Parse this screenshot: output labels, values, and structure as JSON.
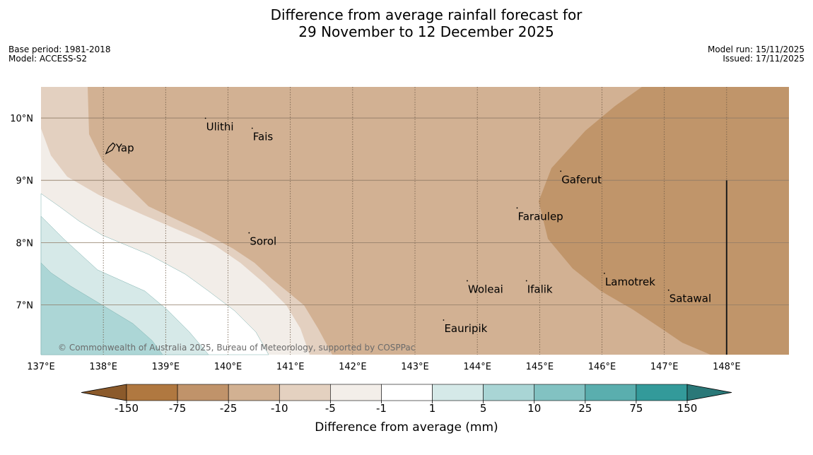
{
  "title": {
    "line1": "Difference from average rainfall forecast for",
    "line2": "29 November to 12 December 2025"
  },
  "meta_left": {
    "base_period": "Base period: 1981-2018",
    "model": "Model: ACCESS-S2"
  },
  "meta_right": {
    "model_run": "Model run: 15/11/2025",
    "issued": "Issued: 17/11/2025"
  },
  "map": {
    "lon_range": [
      137,
      149
    ],
    "lat_range": [
      6.2,
      10.5
    ],
    "lon_ticks": [
      "137°E",
      "138°E",
      "139°E",
      "140°E",
      "141°E",
      "142°E",
      "143°E",
      "144°E",
      "145°E",
      "146°E",
      "147°E",
      "148°E"
    ],
    "lat_ticks": [
      "10°N",
      "9°N",
      "8°N",
      "7°N"
    ],
    "copyright": "© Commonwealth of Australia 2025, Bureau of Meteorology, supported by COSPPac",
    "places": [
      {
        "name": "Yap",
        "lon": 138.2,
        "lat": 9.52
      },
      {
        "name": "Ulithi",
        "lon": 139.65,
        "lat": 9.86
      },
      {
        "name": "Fais",
        "lon": 140.4,
        "lat": 9.7
      },
      {
        "name": "Gaferut",
        "lon": 145.35,
        "lat": 9.01
      },
      {
        "name": "Faraulep",
        "lon": 144.65,
        "lat": 8.42
      },
      {
        "name": "Sorol",
        "lon": 140.35,
        "lat": 8.02
      },
      {
        "name": "Woleai",
        "lon": 143.85,
        "lat": 7.25
      },
      {
        "name": "Ifalik",
        "lon": 144.8,
        "lat": 7.25
      },
      {
        "name": "Lamotrek",
        "lon": 146.05,
        "lat": 7.37
      },
      {
        "name": "Satawal",
        "lon": 147.08,
        "lat": 7.1
      },
      {
        "name": "Eauripik",
        "lon": 143.47,
        "lat": 6.62
      }
    ],
    "boundary_lon": 148,
    "boundary_lat_range": [
      6.2,
      9.0
    ]
  },
  "colorbar": {
    "title": "Difference from average (mm)",
    "ticks": [
      "-150",
      "-75",
      "-25",
      "-10",
      "-5",
      "-1",
      "1",
      "5",
      "10",
      "25",
      "75",
      "150"
    ],
    "under_color": "#8b5a2b",
    "over_color": "#2a7878",
    "colors": [
      "#b07840",
      "#c0936a",
      "#d2b192",
      "#e4d1c0",
      "#f3eee9",
      "#ffffff",
      "#d5e9e8",
      "#a9d5d5",
      "#82c2c2",
      "#5aaeae",
      "#339a9a"
    ]
  },
  "field_colors": {
    "cat_m75_m25": "#c0956a",
    "cat_m25_m10": "#d2b193",
    "cat_m10_m5": "#e3d0c0",
    "cat_m5_m1": "#f2ede8",
    "cat_m1_1": "#ffffff",
    "cat_1_5": "#d6e9e8",
    "cat_5_10": "#acd6d6"
  }
}
